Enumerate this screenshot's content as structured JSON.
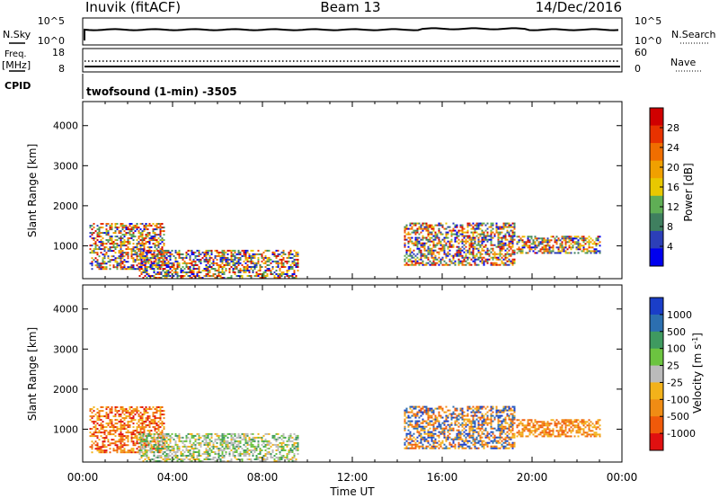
{
  "header": {
    "station": "Inuvik (fitACF)",
    "beam": "Beam 13",
    "date": "14/Dec/2016"
  },
  "noise_panel": {
    "left_label": "N.Sky",
    "left_ticks": [
      "10^5",
      "10^0"
    ],
    "right_label": "N.Search",
    "right_ticks": [
      "10^5",
      "10^0"
    ]
  },
  "freq_panel": {
    "left_label_top": "Freq.",
    "left_label_unit": "[MHz]",
    "left_ticks": [
      "18",
      "8"
    ],
    "right_label": "Nave",
    "right_ticks": [
      "60",
      "0"
    ]
  },
  "cpid": {
    "label": "CPID",
    "program": "twofsound (1-min) -3505"
  },
  "chart_data": [
    {
      "type": "heatmap",
      "parameter": "Power",
      "ylabel": "Slant Range [km]",
      "yticks": [
        "1000",
        "2000",
        "3000",
        "4000"
      ],
      "ylim": [
        180,
        4600
      ],
      "colorbar": {
        "label": "Power [dB]",
        "ticks": [
          "4",
          "8",
          "12",
          "16",
          "20",
          "24",
          "28"
        ],
        "range": [
          0,
          32
        ],
        "colors": [
          "#0000ee",
          "#2c3fb8",
          "#3f7f5f",
          "#5fae55",
          "#e8c800",
          "#f0a000",
          "#f06e00",
          "#e83200",
          "#d00000"
        ]
      },
      "echo_regions": [
        {
          "t0": 0.3,
          "t1": 3.6,
          "r0": 400,
          "r1": 1550
        },
        {
          "t0": 2.5,
          "t1": 9.6,
          "r0": 180,
          "r1": 900
        },
        {
          "t0": 14.3,
          "t1": 19.2,
          "r0": 500,
          "r1": 1550
        },
        {
          "t0": 19.3,
          "t1": 23.0,
          "r0": 800,
          "r1": 1250
        }
      ]
    },
    {
      "type": "heatmap",
      "parameter": "Velocity",
      "ylabel": "Slant Range [km]",
      "yticks": [
        "1000",
        "2000",
        "3000",
        "4000"
      ],
      "ylim": [
        180,
        4600
      ],
      "colorbar": {
        "label": "Velocity [m s^-1]",
        "ticks": [
          "1000",
          "500",
          "100",
          "25",
          "-25",
          "-100",
          "-500",
          "-1000"
        ],
        "colors": [
          "#1a3ec8",
          "#2c6fb0",
          "#3f9a60",
          "#6cc440",
          "#bbbbbb",
          "#f3b21a",
          "#f08c14",
          "#f05a0a",
          "#e01010"
        ]
      },
      "xlabel": "Time UT",
      "xticks": [
        "00:00",
        "04:00",
        "08:00",
        "12:00",
        "16:00",
        "20:00",
        "00:00"
      ],
      "xlim": [
        0,
        24
      ]
    }
  ]
}
